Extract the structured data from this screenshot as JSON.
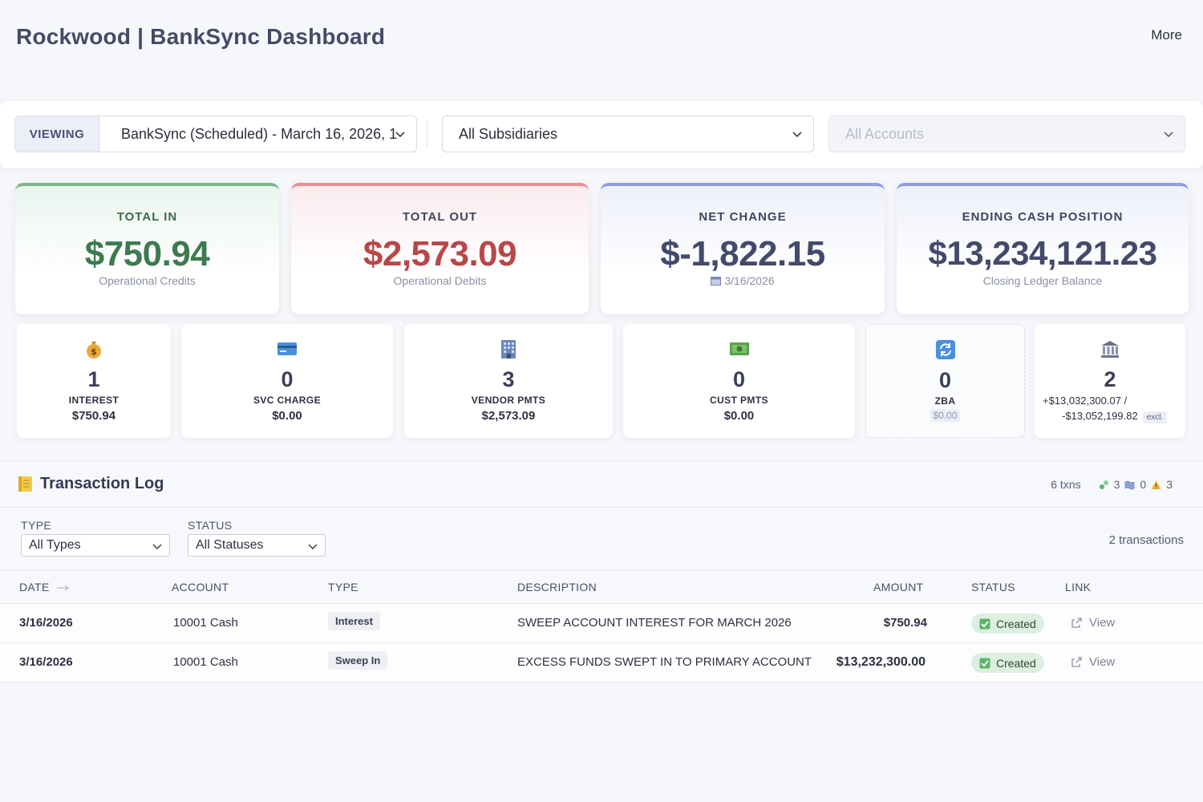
{
  "header": {
    "title": "Rockwood | BankSync Dashboard",
    "more_label": "More"
  },
  "filters": {
    "viewing_label": "VIEWING",
    "run_value": "BankSync (Scheduled) - March 16, 2026, 1",
    "subsidiary_value": "All Subsidiaries",
    "accounts_placeholder": "All Accounts"
  },
  "kpis": [
    {
      "title": "TOTAL IN",
      "value": "$750.94",
      "sub": "Operational Credits",
      "accent": "#7bb889"
    },
    {
      "title": "TOTAL OUT",
      "value": "$2,573.09",
      "sub": "Operational Debits",
      "accent": "#e88f93"
    },
    {
      "title": "NET CHANGE",
      "value": "$-1,822.15",
      "sub": "3/16/2026",
      "sub_icon": "calendar-icon",
      "accent": "#8e9ce3"
    },
    {
      "title": "ENDING CASH POSITION",
      "value": "$13,234,121.23",
      "sub": "Closing Ledger Balance",
      "accent": "#8e9ce3"
    }
  ],
  "stats": [
    {
      "icon": "money-bag-icon",
      "count": "1",
      "label": "INTEREST",
      "amount": "$750.94"
    },
    {
      "icon": "credit-card-icon",
      "count": "0",
      "label": "SVC CHARGE",
      "amount": "$0.00"
    },
    {
      "icon": "office-building-icon",
      "count": "3",
      "label": "VENDOR PMTS",
      "amount": "$2,573.09"
    },
    {
      "icon": "cash-icon",
      "count": "0",
      "label": "CUST PMTS",
      "amount": "$0.00"
    },
    {
      "icon": "sync-icon",
      "count": "0",
      "label": "ZBA",
      "amount": "$0.00"
    },
    {
      "icon": "bank-icon",
      "count": "2",
      "line1": "+$13,032,300.07 /",
      "line2": "-$13,052,199.82",
      "chip": "excl."
    }
  ],
  "log": {
    "title": "Transaction Log",
    "icon": "ledger-icon",
    "txn_total": "6 txns",
    "matched_count": "3",
    "unmatched_count": "0",
    "warning_count": "3",
    "type_filter_label": "TYPE",
    "type_filter_value": "All Types",
    "status_filter_label": "STATUS",
    "status_filter_value": "All Statuses",
    "filtered_count": "2 transactions",
    "columns": {
      "date": "DATE",
      "account": "ACCOUNT",
      "type": "TYPE",
      "description": "DESCRIPTION",
      "amount": "AMOUNT",
      "status": "STATUS",
      "link": "LINK"
    },
    "rows": [
      {
        "date": "3/16/2026",
        "account": "10001 Cash",
        "type": "Interest",
        "description": "SWEEP ACCOUNT INTEREST FOR MARCH 2026",
        "amount": "$750.94",
        "status": "Created",
        "link": "View"
      },
      {
        "date": "3/16/2026",
        "account": "10001 Cash",
        "type": "Sweep In",
        "description": "EXCESS FUNDS SWEPT IN TO PRIMARY ACCOUNT",
        "amount": "$13,232,300.00",
        "status": "Created",
        "link": "View"
      }
    ]
  },
  "colors": {
    "green": "#3e7a4f",
    "red": "#b8474a",
    "navy": "#434a6a",
    "status_bg": "#dcefe0"
  }
}
